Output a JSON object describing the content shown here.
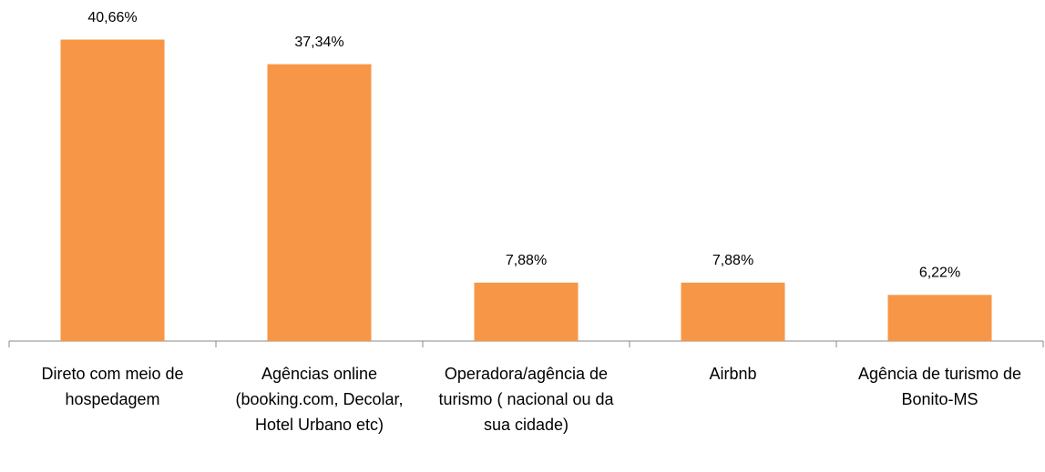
{
  "chart_data": {
    "type": "bar",
    "categories": [
      "Direto com meio de hospedagem",
      "Agências online (booking.com, Decolar, Hotel Urbano etc)",
      "Operadora/agência de turismo ( nacional ou da sua cidade)",
      "Airbnb",
      "Agência de turismo de Bonito-MS"
    ],
    "values": [
      40.66,
      37.34,
      7.88,
      7.88,
      6.22
    ],
    "value_labels": [
      "40,66%",
      "37,34%",
      "7,88%",
      "7,88%",
      "6,22%"
    ],
    "color": "#f79646",
    "ylim": [
      0,
      46
    ]
  }
}
